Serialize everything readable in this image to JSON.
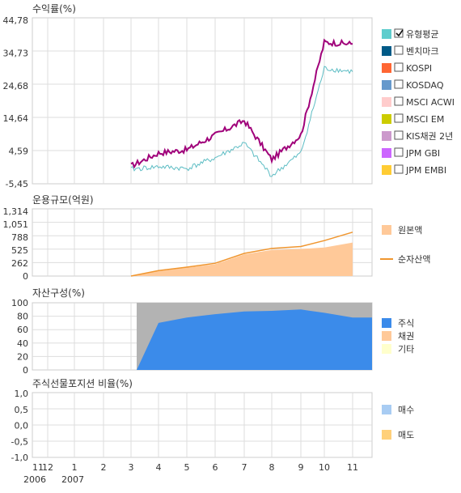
{
  "colors": {
    "frame": "#cccccc",
    "grid": "#d9d9d9",
    "fund_line": "#a0007a",
    "benchmark_line": "#5dbdc4",
    "principal_area": "#ffc999",
    "nav_line": "#f0962f",
    "stock_area": "#3b8bea",
    "bond_area": "#ffc999",
    "other_area": "#b3b3b3",
    "buy": "#a8ccf3",
    "sell": "#ffd07a"
  },
  "x_axis": {
    "months": [
      "11",
      "12",
      "1",
      "2",
      "3",
      "4",
      "5",
      "6",
      "7",
      "8",
      "9",
      "10",
      "11"
    ],
    "years": [
      "2006",
      "2007"
    ]
  },
  "return_chart": {
    "title": "수익률(%)",
    "yticks": [
      "44,78",
      "34,73",
      "24,68",
      "14,64",
      "4,59",
      "-5,45"
    ],
    "legend": [
      {
        "label": "유형평균",
        "color": "#5fcdcd",
        "checked": true
      },
      {
        "label": "벤치마크",
        "color": "#005a87",
        "checked": false
      },
      {
        "label": "KOSPI",
        "color": "#ff6633",
        "checked": false
      },
      {
        "label": "KOSDAQ",
        "color": "#6699cc",
        "checked": false
      },
      {
        "label": "MSCI ACWI",
        "color": "#ffcccc",
        "checked": false
      },
      {
        "label": "MSCI EM",
        "color": "#cccc00",
        "checked": false
      },
      {
        "label": "KIS채권 2년",
        "color": "#cc99cc",
        "checked": false
      },
      {
        "label": "JPM GBI",
        "color": "#cc66ff",
        "checked": false
      },
      {
        "label": "JPM EMBI",
        "color": "#ffcc33",
        "checked": false
      }
    ]
  },
  "aum_chart": {
    "title": "운용규모(억원)",
    "yticks": [
      "1,314",
      "1,051",
      "788",
      "525",
      "262",
      "0"
    ],
    "legend": [
      {
        "label": "원본액",
        "color": "#ffc999",
        "kind": "box"
      },
      {
        "label": "순자산액",
        "color": "#f0962f",
        "kind": "line"
      }
    ]
  },
  "asset_chart": {
    "title": "자산구성(%)",
    "yticks": [
      "100",
      "80",
      "60",
      "40",
      "20",
      "0"
    ],
    "legend": [
      {
        "label": "주식",
        "color": "#3b8bea"
      },
      {
        "label": "채권",
        "color": "#ffc999"
      },
      {
        "label": "기타",
        "color": "#ffffcc"
      }
    ]
  },
  "futures_chart": {
    "title": "주식선물포지션 비율(%)",
    "yticks": [
      "1,0",
      "0,5",
      "0,0",
      "-0,5",
      "-1,0"
    ],
    "legend": [
      {
        "label": "매수",
        "color": "#a8ccf3"
      },
      {
        "label": "매도",
        "color": "#ffd07a"
      }
    ]
  },
  "chart_data": [
    {
      "type": "line",
      "title": "수익률(%)",
      "ylim": [
        -5.45,
        44.78
      ],
      "x_range": [
        "2006-11",
        "2007-11"
      ],
      "series": [
        {
          "name": "유형평균",
          "x": [
            "2007-03",
            "2007-04",
            "2007-05",
            "2007-06",
            "2007-07",
            "2007-08",
            "2007-09",
            "2007-10",
            "2007-11"
          ],
          "values": [
            -1.0,
            0.5,
            -0.8,
            1.5,
            5.0,
            1.5,
            7.0,
            28.0,
            29.0
          ]
        },
        {
          "x": [
            "2007-03",
            "2007-04",
            "2007-05",
            "2007-06",
            "2007-07",
            "2007-08",
            "2007-09",
            "2007-10",
            "2007-11"
          ],
          "values": [
            0.0,
            3.0,
            4.0,
            7.5,
            13.0,
            8.0,
            12.5,
            36.0,
            37.5
          ]
        }
      ]
    },
    {
      "type": "area",
      "title": "운용규모(억원)",
      "ylim": [
        0,
        1314
      ],
      "series": [
        {
          "name": "원본액",
          "x": [
            "2007-03",
            "2007-04",
            "2007-05",
            "2007-06",
            "2007-07",
            "2007-08",
            "2007-09",
            "2007-10",
            "2007-11"
          ],
          "values": [
            0,
            100,
            170,
            240,
            440,
            530,
            550,
            580,
            680
          ]
        },
        {
          "name": "순자산액",
          "x": [
            "2007-03",
            "2007-04",
            "2007-05",
            "2007-06",
            "2007-07",
            "2007-08",
            "2007-09",
            "2007-10",
            "2007-11"
          ],
          "values": [
            0,
            110,
            180,
            260,
            460,
            560,
            600,
            720,
            890
          ]
        }
      ]
    },
    {
      "type": "area",
      "title": "자산구성(%)",
      "ylim": [
        0,
        100
      ],
      "series": [
        {
          "name": "주식",
          "x": [
            "2007-03",
            "2007-04",
            "2007-05",
            "2007-06",
            "2007-07",
            "2007-08",
            "2007-09",
            "2007-10",
            "2007-11"
          ],
          "values": [
            0,
            70,
            78,
            83,
            87,
            88,
            90,
            85,
            78
          ]
        },
        {
          "name": "기타",
          "x": [
            "2007-03",
            "2007-04",
            "2007-05",
            "2007-06",
            "2007-07",
            "2007-08",
            "2007-09",
            "2007-10",
            "2007-11"
          ],
          "values": [
            100,
            30,
            22,
            17,
            13,
            12,
            10,
            15,
            22
          ]
        }
      ]
    },
    {
      "type": "bar",
      "title": "주식선물포지션 비율(%)",
      "ylim": [
        -1.0,
        1.0
      ],
      "series": [
        {
          "name": "매수",
          "values": []
        },
        {
          "name": "매도",
          "values": []
        }
      ]
    }
  ]
}
